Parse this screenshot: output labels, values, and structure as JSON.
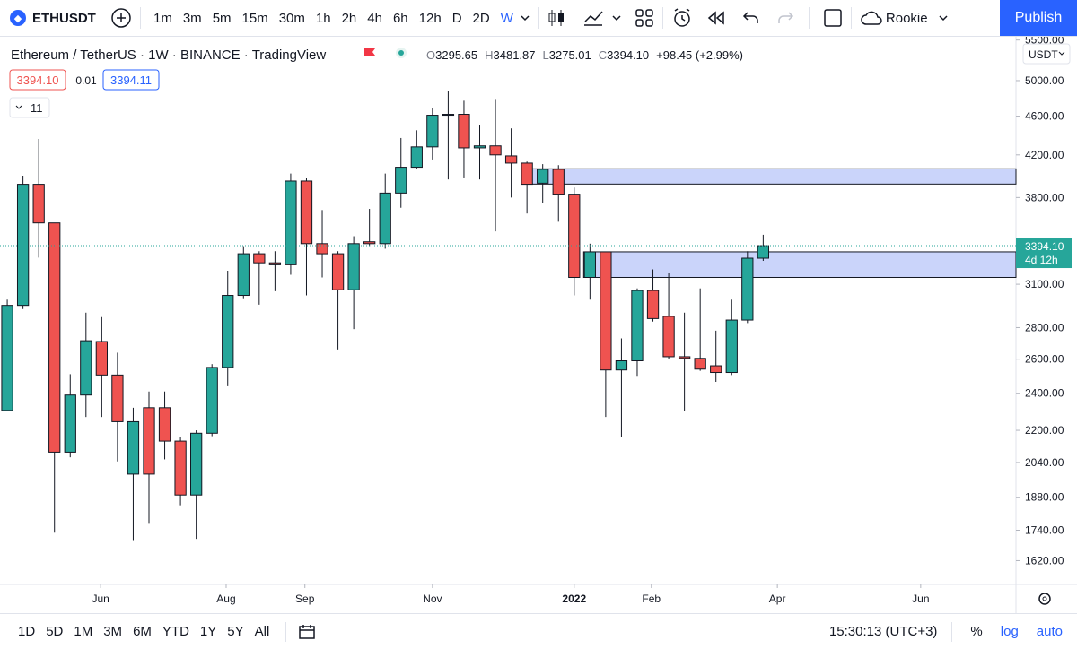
{
  "toolbar": {
    "symbol": "ETHUSDT",
    "intervals": [
      "1m",
      "3m",
      "5m",
      "15m",
      "30m",
      "1h",
      "2h",
      "4h",
      "6h",
      "12h",
      "D",
      "2D",
      "W"
    ],
    "active_interval": 12,
    "account": "Rookie",
    "publish": "Publish"
  },
  "legend": {
    "title": "Ethereum / TetherUS · 1W · BINANCE · TradingView",
    "ohlc": [
      {
        "key": "O",
        "value": "3295.65"
      },
      {
        "key": "H",
        "value": "3481.87"
      },
      {
        "key": "L",
        "value": "3275.01"
      },
      {
        "key": "C",
        "value": "3394.10"
      }
    ],
    "change": "+98.45 (+2.99%)",
    "bid": "3394.10",
    "spread": "0.01",
    "ask": "3394.11",
    "indicators": "11"
  },
  "currency": "USDT",
  "last_price_label": {
    "price": "3394.10",
    "countdown": "4d 12h"
  },
  "bottom_bar": {
    "timeframes": [
      "1D",
      "5D",
      "1M",
      "3M",
      "6M",
      "YTD",
      "1Y",
      "5Y",
      "All"
    ],
    "clock": "15:30:13 (UTC+3)",
    "scale_buttons": [
      "%",
      "log",
      "auto"
    ]
  },
  "chart_data": {
    "type": "candlestick",
    "log_scale": true,
    "up_color": "#26a69a",
    "down_color": "#ef5350",
    "open": [
      2305,
      2950,
      3920,
      3580,
      2090,
      2390,
      2710,
      2505,
      1985,
      2320,
      2320,
      2145,
      1890,
      2185,
      2550,
      3020,
      3330,
      3260,
      3245,
      3950,
      3410,
      3330,
      3060,
      3425,
      3410,
      3840,
      4080,
      4280,
      4610,
      4620,
      4270,
      4290,
      4190,
      4120,
      3930,
      4060,
      3830,
      3150,
      3345,
      2535,
      2590,
      3055,
      2875,
      2615,
      2605,
      2560,
      2520,
      2850,
      3295.65
    ],
    "high": [
      2990,
      4000,
      4360,
      3580,
      2510,
      2900,
      2870,
      2640,
      2320,
      2410,
      2410,
      2165,
      2200,
      2570,
      3200,
      3390,
      3350,
      3350,
      4020,
      3975,
      3690,
      3350,
      3470,
      3700,
      4020,
      4370,
      4450,
      4690,
      4880,
      4770,
      4500,
      4790,
      4470,
      4135,
      4110,
      4100,
      3890,
      3410,
      3345,
      2730,
      3070,
      3210,
      3180,
      2900,
      3070,
      2780,
      2990,
      3350,
      3481.87
    ],
    "low": [
      2300,
      2925,
      3300,
      1730,
      2065,
      2270,
      2270,
      2045,
      1700,
      1770,
      2055,
      1845,
      1705,
      2170,
      2440,
      3000,
      2955,
      3050,
      3170,
      3020,
      3150,
      2660,
      2790,
      3390,
      3370,
      3710,
      4065,
      4155,
      3965,
      3975,
      3965,
      3510,
      3800,
      3660,
      3755,
      3590,
      3020,
      2990,
      2270,
      2165,
      2495,
      2840,
      2600,
      2300,
      2530,
      2465,
      2505,
      2830,
      3275.01
    ],
    "close": [
      2950,
      3920,
      3580,
      2090,
      2390,
      2715,
      2505,
      2245,
      2245,
      1985,
      2145,
      1890,
      2185,
      2550,
      3020,
      3330,
      3260,
      3245,
      3950,
      3410,
      3330,
      3060,
      3410,
      3410,
      3840,
      4080,
      4280,
      4610,
      4620,
      4270,
      4290,
      4200,
      4120,
      3920,
      4060,
      3830,
      3150,
      3345,
      2535,
      2590,
      3055,
      2860,
      2615,
      2605,
      2540,
      2520,
      2850,
      3295.65,
      3394.1
    ],
    "xlim": [
      -0.46,
      64.05
    ],
    "xticks": [
      {
        "value": 5.93,
        "label": "Jun"
      },
      {
        "value": 13.9,
        "label": "Aug"
      },
      {
        "value": 18.9,
        "label": "Sep"
      },
      {
        "value": 27.0,
        "label": "Nov"
      },
      {
        "value": 36.0,
        "label": "2022",
        "bold": true
      },
      {
        "value": 40.9,
        "label": "Feb"
      },
      {
        "value": 48.9,
        "label": "Apr"
      },
      {
        "value": 58.0,
        "label": "Jun"
      }
    ],
    "ylim": [
      1532,
      5531
    ],
    "yticks": [
      {
        "value": 5500,
        "label": "5500.00"
      },
      {
        "value": 5000,
        "label": "5000.00"
      },
      {
        "value": 4600,
        "label": "4600.00"
      },
      {
        "value": 4200,
        "label": "4200.00"
      },
      {
        "value": 3800,
        "label": "3800.00"
      },
      {
        "value": 3100,
        "label": "3100.00"
      },
      {
        "value": 2800,
        "label": "2800.00"
      },
      {
        "value": 2600,
        "label": "2600.00"
      },
      {
        "value": 2400,
        "label": "2400.00"
      },
      {
        "value": 2200,
        "label": "2200.00"
      },
      {
        "value": 2040,
        "label": "2040.00"
      },
      {
        "value": 1880,
        "label": "1880.00"
      },
      {
        "value": 1740,
        "label": "1740.00"
      },
      {
        "value": 1620,
        "label": "1620.00"
      }
    ],
    "zones": [
      {
        "start": 33.2,
        "top": 4065,
        "bottom": 3922
      },
      {
        "start": 36.6,
        "top": 3345,
        "bottom": 3150
      }
    ]
  }
}
